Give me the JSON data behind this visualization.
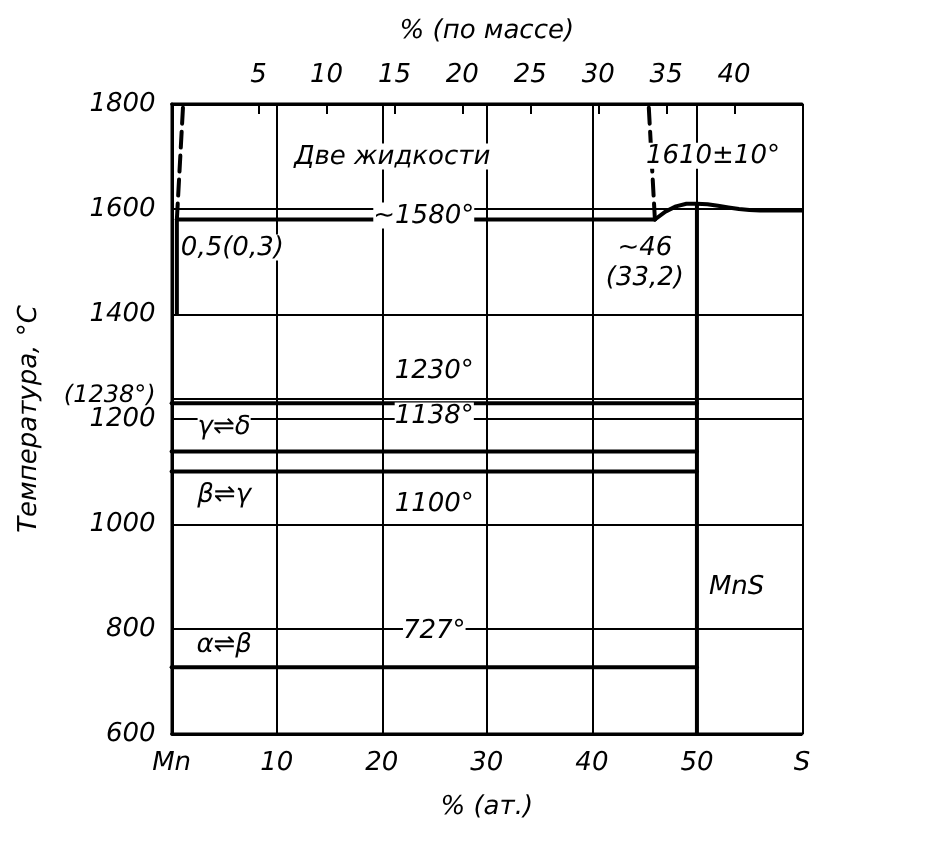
{
  "chart_data": {
    "type": "line",
    "xlabel": "% (ат.)",
    "x2label": "% (по массе)",
    "ylabel": "Температура, °С",
    "xlim": [
      0,
      60
    ],
    "xticks": [
      {
        "value": 0,
        "label": "Mn"
      },
      10,
      20,
      30,
      40,
      50,
      {
        "value": 60,
        "label": "S"
      }
    ],
    "x2lim": [
      -1.4,
      45
    ],
    "x2ticks": [
      5,
      10,
      15,
      20,
      25,
      30,
      35,
      40
    ],
    "ylim": [
      600,
      1800
    ],
    "yticks": [
      600,
      800,
      1000,
      1200,
      {
        "value": 1238,
        "label": "(1238°)"
      },
      1400,
      1600,
      1800
    ],
    "grid": true,
    "marker": "none",
    "series": [
      {
        "color": "#000000",
        "x": [
          0.5,
          46
        ],
        "values": [
          1580,
          1580
        ]
      },
      {
        "color": "#000000",
        "x": [
          46,
          47,
          48,
          49,
          50,
          51,
          52,
          53,
          54,
          55,
          56,
          58,
          60
        ],
        "values": [
          1580,
          1595,
          1605,
          1610,
          1610,
          1609,
          1606,
          1603,
          1600,
          1598,
          1597,
          1597,
          1597
        ]
      },
      {
        "color": "#000000",
        "line_style": "dashed",
        "x": [
          0.5,
          1.1
        ],
        "values": [
          1580,
          1800
        ]
      },
      {
        "color": "#000000",
        "line_style": "dashed",
        "x": [
          46,
          45.4
        ],
        "values": [
          1580,
          1800
        ]
      },
      {
        "color": "#000000",
        "x": [
          0.5,
          0.5
        ],
        "values": [
          1580,
          1400
        ]
      },
      {
        "color": "#000000",
        "x": [
          0,
          50
        ],
        "values": [
          1230,
          1230
        ]
      },
      {
        "color": "#000000",
        "x": [
          0,
          50
        ],
        "values": [
          1138,
          1138
        ]
      },
      {
        "color": "#000000",
        "x": [
          0,
          50
        ],
        "values": [
          1100,
          1100
        ]
      },
      {
        "color": "#000000",
        "x": [
          0,
          50
        ],
        "values": [
          727,
          727
        ]
      },
      {
        "color": "#000000",
        "x": [
          50,
          50
        ],
        "values": [
          600,
          1610
        ]
      }
    ],
    "annotations": [
      "Две жидкости",
      {
        "text": "~1580°",
        "x": 24,
        "y": 1580
      },
      {
        "text": "1610±10°",
        "x": 50,
        "y": 1610
      },
      {
        "text": "0,5(0,3)",
        "x": 0.5,
        "y": 1580
      },
      {
        "text": "~46",
        "x": 46,
        "y": 1580
      },
      {
        "text": "(33,2)",
        "x": 46,
        "y": 1580
      },
      {
        "text": "1230°",
        "x": 25,
        "y": 1230
      },
      "γ⇌δ",
      {
        "text": "1138°",
        "x": 25,
        "y": 1138
      },
      "β⇌γ",
      {
        "text": "1100°",
        "x": 25,
        "y": 1100
      },
      "α⇌β",
      {
        "text": "727°",
        "x": 25,
        "y": 727
      },
      {
        "text": "MnS",
        "x": 50,
        "y": 880
      }
    ]
  }
}
